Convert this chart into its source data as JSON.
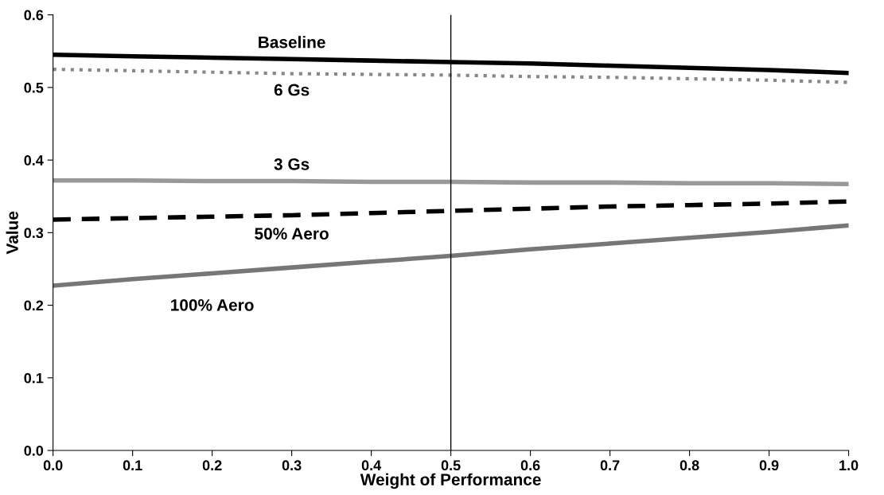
{
  "chart_data": {
    "type": "line",
    "xlabel": "Weight of Performance",
    "ylabel": "Value",
    "x": [
      0.0,
      0.1,
      0.2,
      0.3,
      0.4,
      0.5,
      0.6,
      0.7,
      0.8,
      0.9,
      1.0
    ],
    "xlim": [
      0.0,
      1.0
    ],
    "ylim": [
      0.0,
      0.6
    ],
    "xticks": [
      {
        "value": 0.0,
        "label": "0.0"
      },
      {
        "value": 0.1,
        "label": "0.1"
      },
      {
        "value": 0.2,
        "label": "0.2"
      },
      {
        "value": 0.3,
        "label": "0.3"
      },
      {
        "value": 0.4,
        "label": "0.4"
      },
      {
        "value": 0.5,
        "label": "0.5"
      },
      {
        "value": 0.6,
        "label": "0.6"
      },
      {
        "value": 0.7,
        "label": "0.7"
      },
      {
        "value": 0.8,
        "label": "0.8"
      },
      {
        "value": 0.9,
        "label": "0.9"
      },
      {
        "value": 1.0,
        "label": "1.0"
      }
    ],
    "yticks": [
      {
        "value": 0.0,
        "label": "0.0"
      },
      {
        "value": 0.1,
        "label": "0.1"
      },
      {
        "value": 0.2,
        "label": "0.2"
      },
      {
        "value": 0.3,
        "label": "0.3"
      },
      {
        "value": 0.4,
        "label": "0.4"
      },
      {
        "value": 0.5,
        "label": "0.5"
      },
      {
        "value": 0.6,
        "label": "0.6"
      }
    ],
    "grid": false,
    "legend": false,
    "series": [
      {
        "name": "Baseline",
        "color": "#000000",
        "line_style": "solid",
        "values": [
          0.545,
          0.543,
          0.541,
          0.539,
          0.537,
          0.535,
          0.533,
          0.53,
          0.527,
          0.524,
          0.52
        ]
      },
      {
        "name": "6 Gs",
        "color": "#888888",
        "line_style": "dotted",
        "values": [
          0.525,
          0.523,
          0.521,
          0.519,
          0.518,
          0.517,
          0.515,
          0.514,
          0.512,
          0.51,
          0.507
        ]
      },
      {
        "name": "3 Gs",
        "color": "#999999",
        "line_style": "solid",
        "values": [
          0.372,
          0.372,
          0.371,
          0.371,
          0.37,
          0.37,
          0.369,
          0.369,
          0.368,
          0.368,
          0.367
        ]
      },
      {
        "name": "50% Aero",
        "color": "#000000",
        "line_style": "dashed",
        "values": [
          0.318,
          0.32,
          0.322,
          0.324,
          0.327,
          0.33,
          0.333,
          0.336,
          0.338,
          0.34,
          0.343
        ]
      },
      {
        "name": "100% Aero",
        "color": "#777777",
        "line_style": "solid",
        "values": [
          0.227,
          0.236,
          0.244,
          0.252,
          0.26,
          0.268,
          0.277,
          0.285,
          0.293,
          0.301,
          0.31
        ]
      }
    ],
    "ref_lines": [
      {
        "axis": "x",
        "value": 0.5,
        "color": "#000000",
        "line_style": "solid"
      }
    ]
  }
}
